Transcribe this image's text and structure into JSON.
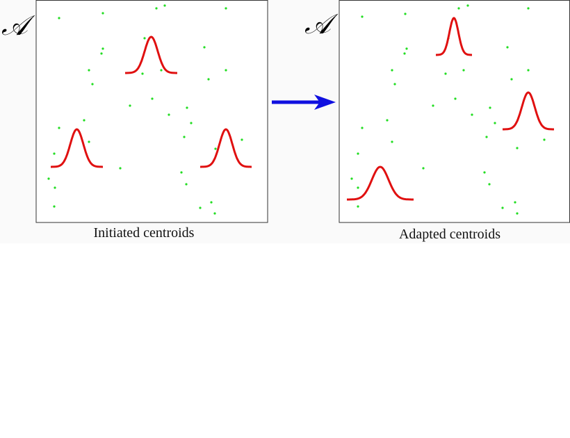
{
  "panels": [
    {
      "label": "𝒜",
      "caption": "Initiated centroids"
    },
    {
      "label": "𝒜",
      "caption": "Adapted centroids"
    }
  ]
}
